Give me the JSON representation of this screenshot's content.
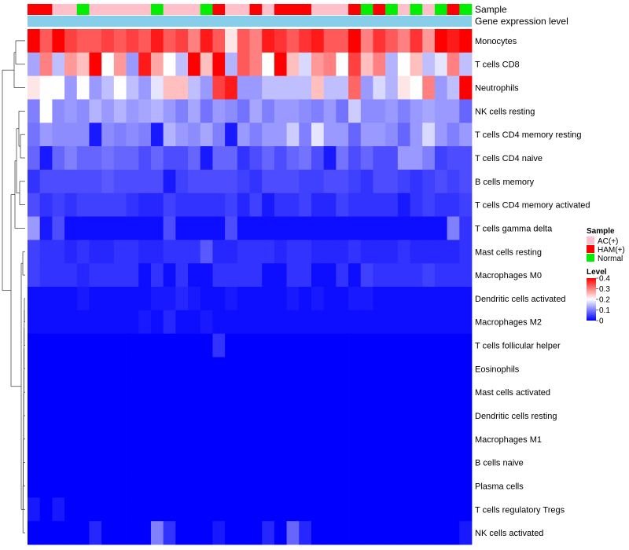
{
  "chart_data": {
    "type": "heatmap",
    "sample_row_label": "Sample",
    "gene_row_label": "Gene expression level",
    "row_labels": [
      "Monocytes",
      "T cells CD8",
      "Neutrophils",
      "NK cells resting",
      "T cells CD4 memory resting",
      "T cells CD4 naive",
      "B cells memory",
      "T cells CD4 memory activated",
      "T cells gamma delta",
      "Mast cells resting",
      "Macrophages M0",
      "Dendritic cells activated",
      "Macrophages M2",
      "T cells follicular helper",
      "Eosinophils",
      "Mast cells activated",
      "Dendritic cells resting",
      "Macrophages M1",
      "B cells naive",
      "Plasma cells",
      "T cells regulatory  Tregs",
      "NK cells activated"
    ],
    "sample_groups": [
      "HAM",
      "HAM",
      "AC",
      "AC",
      "Normal",
      "AC",
      "AC",
      "AC",
      "AC",
      "AC",
      "Normal",
      "AC",
      "AC",
      "AC",
      "Normal",
      "HAM",
      "AC",
      "AC",
      "HAM",
      "AC",
      "HAM",
      "HAM",
      "HAM",
      "AC",
      "AC",
      "AC",
      "HAM",
      "Normal",
      "HAM",
      "Normal",
      "AC",
      "Normal",
      "AC",
      "Normal",
      "HAM",
      "Normal"
    ],
    "values": [
      [
        0.4,
        0.33,
        0.4,
        0.35,
        0.33,
        0.33,
        0.35,
        0.33,
        0.35,
        0.33,
        0.38,
        0.33,
        0.35,
        0.3,
        0.38,
        0.33,
        0.22,
        0.33,
        0.3,
        0.38,
        0.36,
        0.33,
        0.36,
        0.38,
        0.33,
        0.33,
        0.4,
        0.3,
        0.36,
        0.33,
        0.3,
        0.36,
        0.28,
        0.4,
        0.38,
        0.4
      ],
      [
        0.13,
        0.3,
        0.15,
        0.28,
        0.25,
        0.4,
        0.2,
        0.28,
        0.12,
        0.38,
        0.27,
        0.2,
        0.15,
        0.4,
        0.25,
        0.4,
        0.14,
        0.33,
        0.3,
        0.2,
        0.4,
        0.25,
        0.17,
        0.28,
        0.3,
        0.2,
        0.35,
        0.25,
        0.3,
        0.14,
        0.2,
        0.25,
        0.15,
        0.18,
        0.3,
        0.15
      ],
      [
        0.22,
        0.2,
        0.2,
        0.12,
        0.2,
        0.12,
        0.15,
        0.2,
        0.15,
        0.12,
        0.18,
        0.25,
        0.25,
        0.15,
        0.12,
        0.35,
        0.38,
        0.12,
        0.12,
        0.15,
        0.15,
        0.15,
        0.15,
        0.25,
        0.15,
        0.15,
        0.32,
        0.12,
        0.17,
        0.14,
        0.22,
        0.2,
        0.3,
        0.12,
        0.15,
        0.4
      ],
      [
        0.1,
        0.2,
        0.11,
        0.12,
        0.11,
        0.14,
        0.12,
        0.14,
        0.12,
        0.13,
        0.14,
        0.12,
        0.1,
        0.13,
        0.09,
        0.12,
        0.11,
        0.09,
        0.13,
        0.1,
        0.12,
        0.12,
        0.11,
        0.1,
        0.12,
        0.09,
        0.16,
        0.11,
        0.11,
        0.12,
        0.1,
        0.12,
        0.13,
        0.12,
        0.12,
        0.08
      ],
      [
        0.09,
        0.12,
        0.11,
        0.11,
        0.11,
        0.02,
        0.11,
        0.1,
        0.11,
        0.1,
        0.02,
        0.14,
        0.12,
        0.11,
        0.13,
        0.1,
        0.02,
        0.12,
        0.1,
        0.12,
        0.12,
        0.16,
        0.1,
        0.18,
        0.12,
        0.12,
        0.08,
        0.12,
        0.12,
        0.11,
        0.08,
        0.12,
        0.17,
        0.12,
        0.1,
        0.12
      ],
      [
        0.08,
        0.02,
        0.08,
        0.1,
        0.08,
        0.08,
        0.09,
        0.08,
        0.08,
        0.06,
        0.08,
        0.06,
        0.06,
        0.08,
        0.02,
        0.08,
        0.08,
        0.04,
        0.06,
        0.08,
        0.06,
        0.08,
        0.09,
        0.06,
        0.02,
        0.09,
        0.06,
        0.08,
        0.06,
        0.06,
        0.12,
        0.12,
        0.1,
        0.05,
        0.06,
        0.06
      ],
      [
        0.04,
        0.06,
        0.06,
        0.06,
        0.06,
        0.06,
        0.07,
        0.06,
        0.06,
        0.06,
        0.06,
        0.02,
        0.05,
        0.06,
        0.06,
        0.06,
        0.06,
        0.05,
        0.04,
        0.06,
        0.06,
        0.06,
        0.05,
        0.05,
        0.06,
        0.06,
        0.05,
        0.04,
        0.06,
        0.06,
        0.05,
        0.04,
        0.05,
        0.06,
        0.05,
        0.06
      ],
      [
        0.06,
        0.04,
        0.05,
        0.04,
        0.05,
        0.05,
        0.05,
        0.05,
        0.04,
        0.03,
        0.03,
        0.05,
        0.04,
        0.04,
        0.04,
        0.04,
        0.05,
        0.03,
        0.05,
        0.02,
        0.04,
        0.04,
        0.05,
        0.03,
        0.03,
        0.05,
        0.04,
        0.04,
        0.04,
        0.04,
        0.02,
        0.04,
        0.05,
        0.04,
        0.04,
        0.05
      ],
      [
        0.12,
        0.02,
        0.06,
        0.01,
        0.01,
        0.01,
        0.01,
        0.01,
        0.01,
        0.01,
        0.01,
        0.06,
        0.01,
        0.01,
        0.01,
        0.01,
        0.06,
        0.01,
        0.01,
        0.01,
        0.01,
        0.01,
        0.01,
        0.01,
        0.01,
        0.01,
        0.01,
        0.01,
        0.01,
        0.01,
        0.01,
        0.01,
        0.01,
        0.01,
        0.1,
        0.04
      ],
      [
        0.05,
        0.04,
        0.04,
        0.03,
        0.04,
        0.03,
        0.03,
        0.04,
        0.04,
        0.03,
        0.03,
        0.04,
        0.04,
        0.04,
        0.07,
        0.03,
        0.03,
        0.04,
        0.04,
        0.04,
        0.03,
        0.04,
        0.04,
        0.03,
        0.03,
        0.03,
        0.04,
        0.03,
        0.03,
        0.03,
        0.04,
        0.03,
        0.03,
        0.03,
        0.03,
        0.04
      ],
      [
        0.05,
        0.04,
        0.04,
        0.04,
        0.03,
        0.04,
        0.04,
        0.04,
        0.04,
        0.01,
        0.04,
        0.01,
        0.04,
        0.01,
        0.01,
        0.04,
        0.04,
        0.04,
        0.04,
        0.01,
        0.01,
        0.04,
        0.04,
        0.01,
        0.01,
        0.04,
        0.01,
        0.05,
        0.04,
        0.04,
        0.04,
        0.04,
        0.05,
        0.04,
        0.04,
        0.04
      ],
      [
        0.01,
        0.01,
        0.01,
        0.01,
        0.02,
        0.01,
        0.01,
        0.01,
        0.01,
        0.01,
        0.02,
        0.02,
        0.03,
        0.02,
        0.01,
        0.01,
        0.02,
        0.01,
        0.01,
        0.01,
        0.01,
        0.02,
        0.01,
        0.02,
        0.01,
        0.01,
        0.02,
        0.02,
        0.01,
        0.01,
        0.01,
        0.01,
        0.01,
        0.01,
        0.01,
        0.01
      ],
      [
        0.01,
        0.01,
        0.01,
        0.01,
        0.01,
        0.01,
        0.01,
        0.01,
        0.01,
        0.02,
        0.01,
        0.03,
        0.01,
        0.01,
        0.02,
        0.01,
        0.01,
        0.01,
        0.01,
        0.01,
        0.01,
        0.01,
        0.01,
        0.01,
        0.01,
        0.01,
        0.01,
        0.01,
        0.01,
        0.01,
        0.01,
        0.01,
        0.01,
        0.01,
        0.01,
        0.01
      ],
      [
        0.0,
        0.0,
        0.0,
        0.0,
        0.0,
        0.0,
        0.0,
        0.0,
        0.0,
        0.0,
        0.0,
        0.0,
        0.0,
        0.0,
        0.0,
        0.04,
        0.0,
        0.0,
        0.0,
        0.0,
        0.0,
        0.0,
        0.0,
        0.0,
        0.0,
        0.0,
        0.0,
        0.0,
        0.0,
        0.0,
        0.0,
        0.0,
        0.0,
        0.0,
        0.0,
        0.0
      ],
      [
        0.0,
        0.0,
        0.0,
        0.0,
        0.0,
        0.0,
        0.0,
        0.0,
        0.0,
        0.0,
        0.0,
        0.0,
        0.0,
        0.0,
        0.0,
        0.0,
        0.0,
        0.0,
        0.0,
        0.0,
        0.0,
        0.0,
        0.0,
        0.0,
        0.0,
        0.0,
        0.0,
        0.0,
        0.0,
        0.0,
        0.0,
        0.0,
        0.0,
        0.0,
        0.0,
        0.0
      ],
      [
        0.0,
        0.0,
        0.0,
        0.0,
        0.0,
        0.0,
        0.0,
        0.0,
        0.0,
        0.0,
        0.0,
        0.0,
        0.0,
        0.0,
        0.0,
        0.0,
        0.0,
        0.0,
        0.0,
        0.0,
        0.0,
        0.0,
        0.0,
        0.0,
        0.0,
        0.0,
        0.0,
        0.0,
        0.0,
        0.0,
        0.0,
        0.0,
        0.0,
        0.0,
        0.0,
        0.0
      ],
      [
        0.0,
        0.0,
        0.0,
        0.0,
        0.0,
        0.0,
        0.0,
        0.0,
        0.0,
        0.0,
        0.0,
        0.0,
        0.0,
        0.0,
        0.0,
        0.0,
        0.0,
        0.0,
        0.0,
        0.0,
        0.0,
        0.0,
        0.0,
        0.0,
        0.0,
        0.0,
        0.0,
        0.0,
        0.0,
        0.0,
        0.0,
        0.0,
        0.0,
        0.0,
        0.0,
        0.0
      ],
      [
        0.0,
        0.0,
        0.0,
        0.0,
        0.0,
        0.0,
        0.0,
        0.0,
        0.0,
        0.0,
        0.0,
        0.0,
        0.0,
        0.0,
        0.0,
        0.0,
        0.0,
        0.0,
        0.0,
        0.0,
        0.0,
        0.0,
        0.0,
        0.0,
        0.0,
        0.0,
        0.0,
        0.0,
        0.0,
        0.0,
        0.0,
        0.0,
        0.0,
        0.0,
        0.0,
        0.0
      ],
      [
        0.0,
        0.0,
        0.0,
        0.0,
        0.0,
        0.0,
        0.0,
        0.0,
        0.0,
        0.0,
        0.0,
        0.0,
        0.0,
        0.0,
        0.0,
        0.0,
        0.0,
        0.0,
        0.0,
        0.0,
        0.0,
        0.0,
        0.0,
        0.0,
        0.0,
        0.0,
        0.0,
        0.0,
        0.0,
        0.0,
        0.0,
        0.0,
        0.0,
        0.0,
        0.0,
        0.0
      ],
      [
        0.0,
        0.0,
        0.0,
        0.0,
        0.0,
        0.0,
        0.0,
        0.0,
        0.0,
        0.0,
        0.0,
        0.0,
        0.0,
        0.0,
        0.0,
        0.0,
        0.0,
        0.0,
        0.0,
        0.0,
        0.0,
        0.0,
        0.0,
        0.0,
        0.0,
        0.0,
        0.0,
        0.0,
        0.0,
        0.0,
        0.0,
        0.0,
        0.0,
        0.0,
        0.0,
        0.0
      ],
      [
        0.02,
        0.0,
        0.02,
        0.0,
        0.0,
        0.0,
        0.0,
        0.0,
        0.0,
        0.0,
        0.0,
        0.0,
        0.0,
        0.0,
        0.0,
        0.0,
        0.0,
        0.0,
        0.0,
        0.0,
        0.0,
        0.0,
        0.0,
        0.0,
        0.0,
        0.0,
        0.0,
        0.0,
        0.0,
        0.0,
        0.0,
        0.0,
        0.0,
        0.0,
        0.0,
        0.0
      ],
      [
        0.0,
        0.0,
        0.0,
        0.0,
        0.0,
        0.03,
        0.0,
        0.0,
        0.0,
        0.0,
        0.1,
        0.04,
        0.0,
        0.0,
        0.0,
        0.02,
        0.0,
        0.0,
        0.0,
        0.03,
        0.0,
        0.08,
        0.03,
        0.0,
        0.0,
        0.0,
        0.0,
        0.0,
        0.0,
        0.0,
        0.0,
        0.0,
        0.0,
        0.0,
        0.0,
        0.02
      ]
    ],
    "legend": {
      "sample_title": "Sample",
      "sample_items": [
        {
          "label": "AC(+)",
          "color": "#ffc0cb"
        },
        {
          "label": "HAM(+)",
          "color": "#ff0000"
        },
        {
          "label": "Normal",
          "color": "#00ee00"
        }
      ],
      "level_title": "Level",
      "level_ticks": [
        "0.4",
        "0.3",
        "0.2",
        "0.1",
        "0"
      ],
      "level_range": [
        0,
        0.4
      ]
    },
    "colors": {
      "low": "#0000ff",
      "mid": "#ffffff",
      "high": "#ff0000",
      "gene_bar": "#87ceeb",
      "dendrogram": "#333333"
    }
  }
}
